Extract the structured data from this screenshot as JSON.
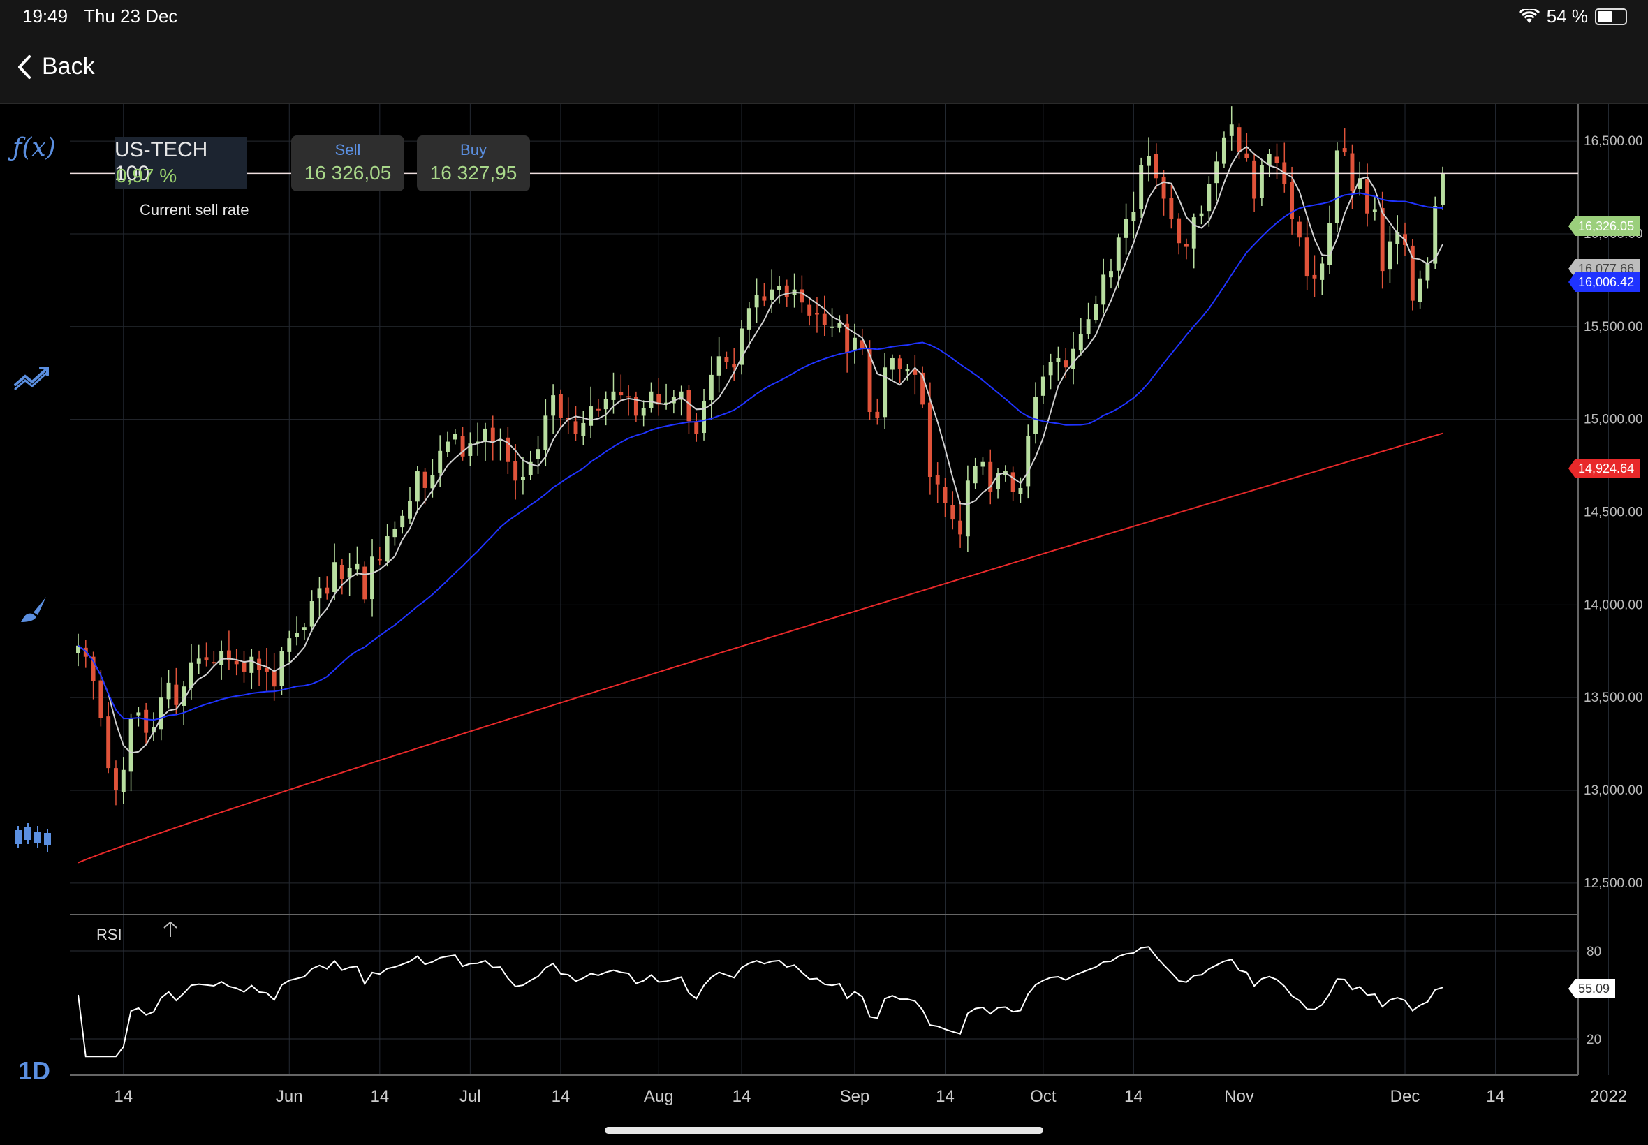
{
  "status_bar": {
    "time": "19:49",
    "date": "Thu 23 Dec",
    "battery": "54 %",
    "battery_level": 0.54
  },
  "nav": {
    "back_label": "Back"
  },
  "sidebar": {
    "function_label": "ƒ(x)",
    "icons": [
      "function-icon",
      "indicators-trend-icon",
      "drawing-brush-icon",
      "candlestick-chart-type-icon"
    ],
    "timeframe": "1D"
  },
  "instrument": {
    "name": "US-TECH 100",
    "change": "0,97 %"
  },
  "sell": {
    "label": "Sell",
    "value": "16 326,05"
  },
  "buy": {
    "label": "Buy",
    "value": "16 327,95"
  },
  "current_sell_rate_label": "Current sell rate",
  "price_tags": {
    "current": "16,326.05",
    "ma_short": "16,077.66",
    "ma_mid": "16,006.42",
    "ma_long": "14,924.64",
    "rsi": "55.09"
  },
  "colors": {
    "up_candle": "#b8dea0",
    "down_candle": "#e0533a",
    "ma_short": "#d0d0d0",
    "ma_mid": "#1f33ff",
    "ma_long": "#e8292a",
    "current_tag": "#9bcf7c",
    "accent": "#5b8fe0"
  },
  "rsi_label": "RSI",
  "chart_data": {
    "type": "candlestick",
    "instrument": "US-TECH 100",
    "timeframe": "1D",
    "y_ticks": [
      "16,500.00",
      "16,000.00",
      "15,500.00",
      "15,000.00",
      "14,500.00",
      "14,000.00",
      "13,500.00",
      "13,000.00",
      "12,500.00"
    ],
    "y_range": [
      12330,
      16700
    ],
    "x_tick_labels": [
      "14",
      "Jun",
      "14",
      "Jul",
      "14",
      "Aug",
      "14",
      "Sep",
      "14",
      "Oct",
      "14",
      "Nov",
      "Dec",
      "14",
      "2022"
    ],
    "closes": [
      13780,
      13720,
      13590,
      13390,
      13120,
      13000,
      13110,
      13390,
      13420,
      13310,
      13340,
      13500,
      13580,
      13460,
      13560,
      13690,
      13710,
      13700,
      13690,
      13750,
      13700,
      13680,
      13640,
      13720,
      13650,
      13640,
      13560,
      13750,
      13820,
      13850,
      13880,
      14020,
      14090,
      14060,
      14230,
      14140,
      14200,
      14220,
      14030,
      14260,
      14240,
      14370,
      14410,
      14480,
      14560,
      14720,
      14630,
      14700,
      14830,
      14880,
      14920,
      14800,
      14870,
      14880,
      14950,
      14880,
      14890,
      14770,
      14670,
      14690,
      14770,
      14840,
      15020,
      15130,
      15010,
      15000,
      14920,
      14980,
      15070,
      15050,
      15110,
      15150,
      15130,
      15120,
      15020,
      15060,
      15150,
      15080,
      15090,
      15120,
      15150,
      14990,
      14920,
      15100,
      15240,
      15340,
      15310,
      15280,
      15490,
      15600,
      15670,
      15640,
      15700,
      15720,
      15660,
      15700,
      15630,
      15560,
      15570,
      15510,
      15500,
      15520,
      15360,
      15440,
      15380,
      15040,
      15010,
      15280,
      15330,
      15270,
      15270,
      15240,
      15080,
      14690,
      14650,
      14550,
      14460,
      14380,
      14670,
      14750,
      14770,
      14610,
      14710,
      14720,
      14610,
      14630,
      14910,
      15120,
      15230,
      15310,
      15330,
      15280,
      15380,
      15460,
      15540,
      15620,
      15780,
      15800,
      15980,
      16080,
      16120,
      16370,
      16420,
      16300,
      16190,
      16080,
      15950,
      15930,
      16090,
      16110,
      16270,
      16390,
      16520,
      16590,
      16440,
      16410,
      16190,
      16370,
      16430,
      16380,
      16270,
      16080,
      15980,
      15770,
      15760,
      15840,
      16060,
      16450,
      16440,
      16230,
      16300,
      16110,
      16130,
      15800,
      15960,
      16010,
      15940,
      15640,
      15760,
      15840,
      16150,
      16326
    ],
    "ma_short_label": "16,077.66",
    "ma_mid_label": "16,006.42",
    "ma_long_label": "14,924.64",
    "rsi": {
      "levels": [
        80,
        20
      ],
      "range": [
        0,
        100
      ],
      "last": 55.09
    }
  }
}
